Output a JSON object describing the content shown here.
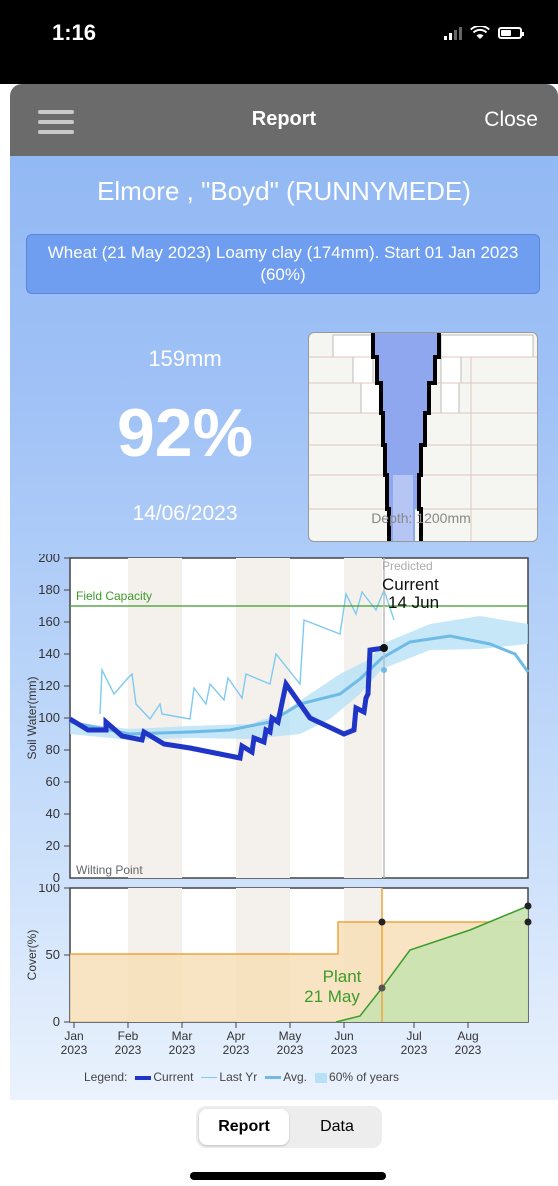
{
  "status": {
    "time": "1:16"
  },
  "nav": {
    "title": "Report",
    "close_label": "Close"
  },
  "header": {
    "farm": "Elmore , \"Boyd\" (RUNNYMEDE)",
    "crop_info": "Wheat (21 May 2023) Loamy clay (174mm). Start 01 Jan 2023 (60%)"
  },
  "summary": {
    "water_mm": "159mm",
    "percent": "92%",
    "date": "14/06/2023"
  },
  "profile": {
    "depth_label": "Depth: 1200mm"
  },
  "soil_chart": {
    "y_label": "Soil Water(mm)",
    "y_ticks": [
      "200",
      "180",
      "160",
      "140",
      "120",
      "100",
      "80",
      "60",
      "40",
      "20",
      "0"
    ],
    "field_capacity_label": "Field Capacity",
    "wilting_point_label": "Wilting Point",
    "predicted_label": "Predicted",
    "current_label": "Current",
    "current_date": "14 Jun"
  },
  "cover_chart": {
    "y_label": "Cover(%)",
    "y_ticks": [
      "100",
      "50",
      "0"
    ],
    "plant_label": "Plant",
    "plant_date": "21 May",
    "x_months": [
      {
        "m": "Jan",
        "y": "2023"
      },
      {
        "m": "Feb",
        "y": "2023"
      },
      {
        "m": "Mar",
        "y": "2023"
      },
      {
        "m": "Apr",
        "y": "2023"
      },
      {
        "m": "May",
        "y": "2023"
      },
      {
        "m": "Jun",
        "y": "2023"
      },
      {
        "m": "Jul",
        "y": "2023"
      },
      {
        "m": "Aug",
        "y": "2023"
      }
    ]
  },
  "legend": {
    "title": "Legend:",
    "current": "Current",
    "last_yr": "Last Yr",
    "avg": "Avg.",
    "range": "60% of years"
  },
  "tabs": {
    "report": "Report",
    "data": "Data"
  },
  "colors": {
    "current": "#1f35c8",
    "last_yr": "#7fcaf0",
    "avg": "#6fbbe6",
    "range": "#b7e1f6",
    "field_capacity": "#3c9b2a",
    "cover_fill": "#f7dfb8",
    "green_fill": "#c9e2b0"
  }
}
